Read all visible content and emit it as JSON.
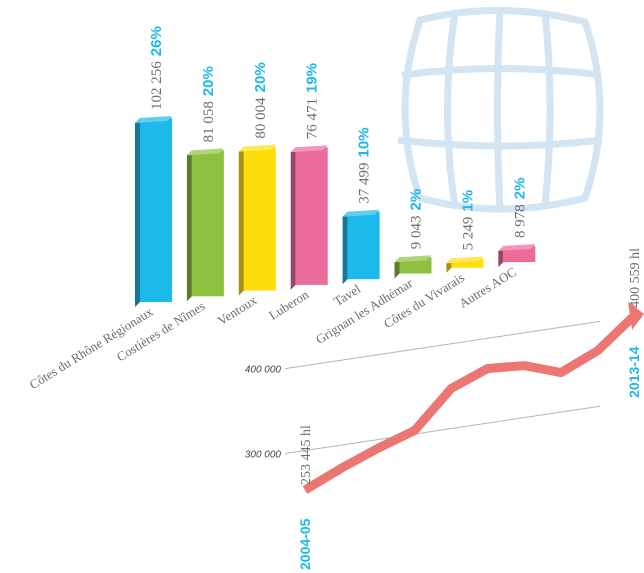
{
  "chart_data": [
    {
      "type": "bar3d",
      "categories": [
        "Côtes du Rhône Régionaux",
        "Costières de Nîmes",
        "Ventoux",
        "Luberon",
        "Tavel",
        "Grignan les Adhémar",
        "Côtes du Vivarais",
        "Autres AOC"
      ],
      "values": [
        102256,
        81058,
        80004,
        76471,
        37499,
        9043,
        5249,
        8978
      ],
      "value_labels": [
        "102 256",
        "81 058",
        "80 004",
        "76 471",
        "37 499",
        "9 043",
        "5 249",
        "8 978"
      ],
      "shares": [
        26,
        20,
        20,
        19,
        10,
        2,
        1,
        2
      ],
      "share_labels": [
        "26%",
        "20%",
        "20%",
        "19%",
        "10%",
        "2%",
        "1%",
        "2%"
      ],
      "colors": [
        "#1cb9ea",
        "#8dc13f",
        "#fede0a",
        "#ea6b9c",
        "#1cb9ea",
        "#8dc13f",
        "#fede0a",
        "#ea6b9c"
      ]
    },
    {
      "type": "line",
      "categories": [
        "2004-05",
        null,
        null,
        null,
        null,
        null,
        null,
        null,
        null,
        "2013-14"
      ],
      "values": [
        253445,
        272800,
        289800,
        304300,
        347300,
        364400,
        361300,
        346600,
        365800,
        400559
      ],
      "value_labels": [
        "253 445 hl",
        null,
        null,
        null,
        null,
        null,
        null,
        null,
        null,
        "400 559 hl"
      ],
      "ylim": [
        250000,
        410000
      ],
      "yticks": [
        {
          "value": 300000,
          "label": "300 000"
        },
        {
          "value": 400000,
          "label": "400 000"
        }
      ],
      "color": "#ec7672",
      "grid": true
    }
  ]
}
